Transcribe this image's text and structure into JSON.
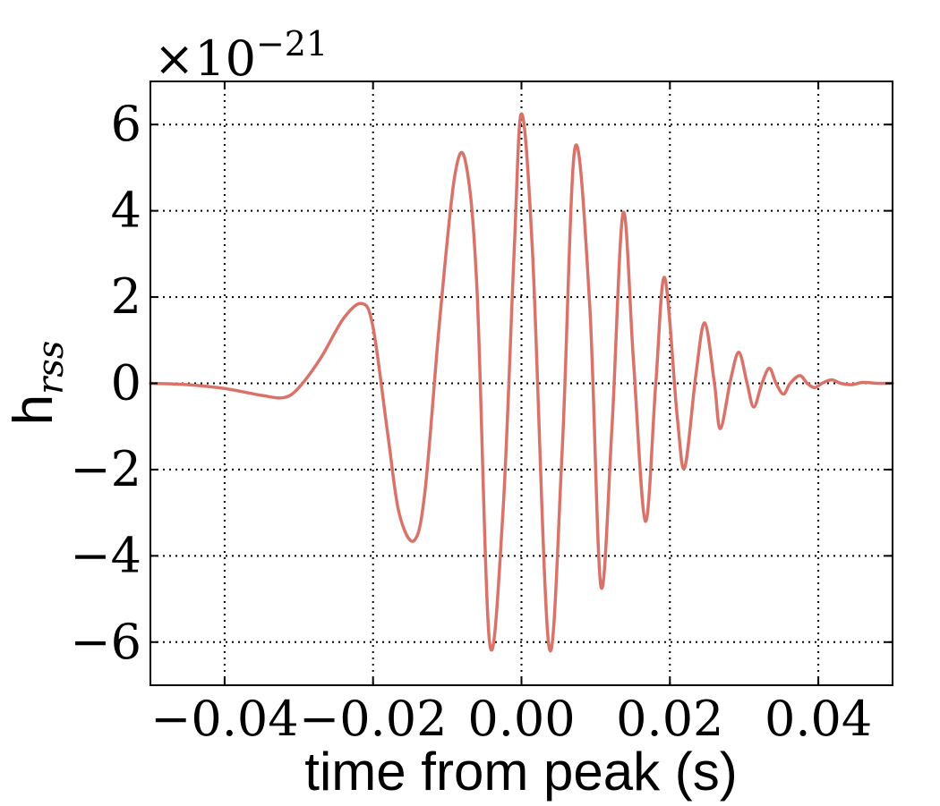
{
  "chart_data": {
    "type": "line",
    "title": "",
    "xlabel": "time from peak (s)",
    "ylabel": "h",
    "ylabel_sub": "rss",
    "scale_factor": {
      "prefix": "×10",
      "exponent": "−21"
    },
    "xlim": [
      -0.05,
      0.05
    ],
    "ylim": [
      -7,
      7
    ],
    "x_ticks": [
      -0.04,
      -0.02,
      0.0,
      0.02,
      0.04
    ],
    "x_tick_labels": [
      "−0.04",
      "−0.02",
      "0.00",
      "0.02",
      "0.04"
    ],
    "y_ticks": [
      -6,
      -4,
      -2,
      0,
      2,
      4,
      6
    ],
    "y_tick_labels": [
      "−6",
      "−4",
      "−2",
      "0",
      "2",
      "4",
      "6"
    ],
    "grid": true,
    "series": [
      {
        "color": "#d9736a",
        "x": [
          -0.05,
          -0.045,
          -0.04,
          -0.035,
          -0.032,
          -0.03,
          -0.027,
          -0.024,
          -0.0215,
          -0.02,
          -0.018,
          -0.0165,
          -0.0145,
          -0.013,
          -0.011,
          -0.009,
          -0.0075,
          -0.006,
          -0.0043,
          -0.0025,
          -0.001,
          0.0,
          0.0015,
          0.0037,
          0.0055,
          0.0072,
          0.0092,
          0.0107,
          0.0122,
          0.0137,
          0.0151,
          0.0167,
          0.0181,
          0.0193,
          0.021,
          0.022,
          0.0235,
          0.0247,
          0.026,
          0.0268,
          0.0282,
          0.0293,
          0.0304,
          0.0313,
          0.0324,
          0.0334,
          0.0343,
          0.0353,
          0.0362,
          0.0375,
          0.0385,
          0.0395,
          0.0405,
          0.0418,
          0.043,
          0.0445,
          0.046,
          0.048,
          0.05
        ],
        "y": [
          0.0,
          -0.03,
          -0.12,
          -0.28,
          -0.33,
          -0.1,
          0.6,
          1.5,
          1.85,
          1.3,
          -1.2,
          -3.0,
          -3.65,
          -2.5,
          1.5,
          4.8,
          5.1,
          2.2,
          -6.0,
          -3.0,
          3.0,
          6.25,
          3.0,
          -6.1,
          -1.5,
          5.45,
          1.8,
          -4.7,
          -1.0,
          3.95,
          0.5,
          -3.2,
          0.0,
          2.45,
          -0.8,
          -1.95,
          0.2,
          1.4,
          0.0,
          -1.05,
          0.1,
          0.72,
          0.0,
          -0.55,
          0.0,
          0.35,
          0.0,
          -0.25,
          0.0,
          0.18,
          0.0,
          -0.1,
          0.0,
          0.08,
          0.0,
          -0.03,
          0.02,
          0.0,
          0.0
        ]
      }
    ]
  }
}
